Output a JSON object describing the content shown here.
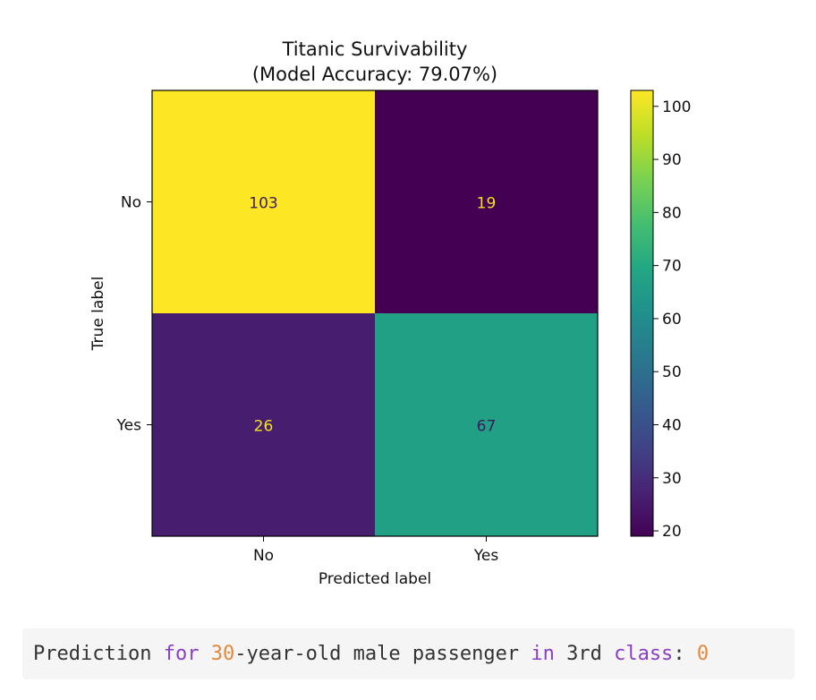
{
  "chart_data": {
    "type": "heatmap",
    "title": "Titanic Survivability\n(Model Accuracy: 79.07%)",
    "title_lines": [
      "Titanic Survivability",
      "(Model Accuracy: 79.07%)"
    ],
    "xlabel": "Predicted label",
    "ylabel": "True label",
    "x_categories": [
      "No",
      "Yes"
    ],
    "y_categories": [
      "No",
      "Yes"
    ],
    "matrix": [
      [
        103,
        19
      ],
      [
        26,
        67
      ]
    ],
    "colormap": "viridis",
    "colorbar": {
      "ticks": [
        20,
        30,
        40,
        50,
        60,
        70,
        80,
        90,
        100
      ],
      "range": [
        19,
        103
      ]
    },
    "text_colors": {
      "on_dark": "#f2e31d",
      "on_light": "#3d1a5c"
    }
  },
  "output": {
    "segments": [
      {
        "text": "Prediction ",
        "kind": "plain"
      },
      {
        "text": "for",
        "kind": "keyword"
      },
      {
        "text": " ",
        "kind": "plain"
      },
      {
        "text": "30",
        "kind": "number"
      },
      {
        "text": "-year-old male passenger ",
        "kind": "plain"
      },
      {
        "text": "in",
        "kind": "keyword"
      },
      {
        "text": " 3rd ",
        "kind": "plain"
      },
      {
        "text": "class",
        "kind": "keyword"
      },
      {
        "text": ": ",
        "kind": "plain"
      },
      {
        "text": "0",
        "kind": "number"
      }
    ],
    "background": "#f5f5f5"
  }
}
